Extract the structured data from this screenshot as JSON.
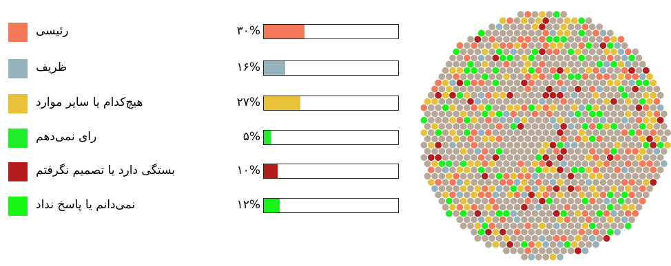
{
  "chart_data": {
    "type": "bar",
    "categories": [
      "رئیسی",
      "ظریف",
      "هیچ‌کدام یا سایر موارد",
      "رای نمی‌دهم",
      "بستگی دارد یا تصمیم نگرفتم",
      "نمی‌دانم یا پاسخ نداد"
    ],
    "values": [
      30,
      16,
      27,
      5,
      10,
      12
    ],
    "value_labels": [
      "۳۰%",
      "۱۶%",
      "۲۷%",
      "۵%",
      "۱۰%",
      "۱۲%"
    ],
    "colors": [
      "#f4795b",
      "#95b3bd",
      "#e8c03a",
      "#1eef2a",
      "#b51c1c",
      "#16f516"
    ],
    "ylim": [
      0,
      100
    ],
    "companion_graphic": "dot-circle",
    "dot_background_color": "#b8a898"
  }
}
